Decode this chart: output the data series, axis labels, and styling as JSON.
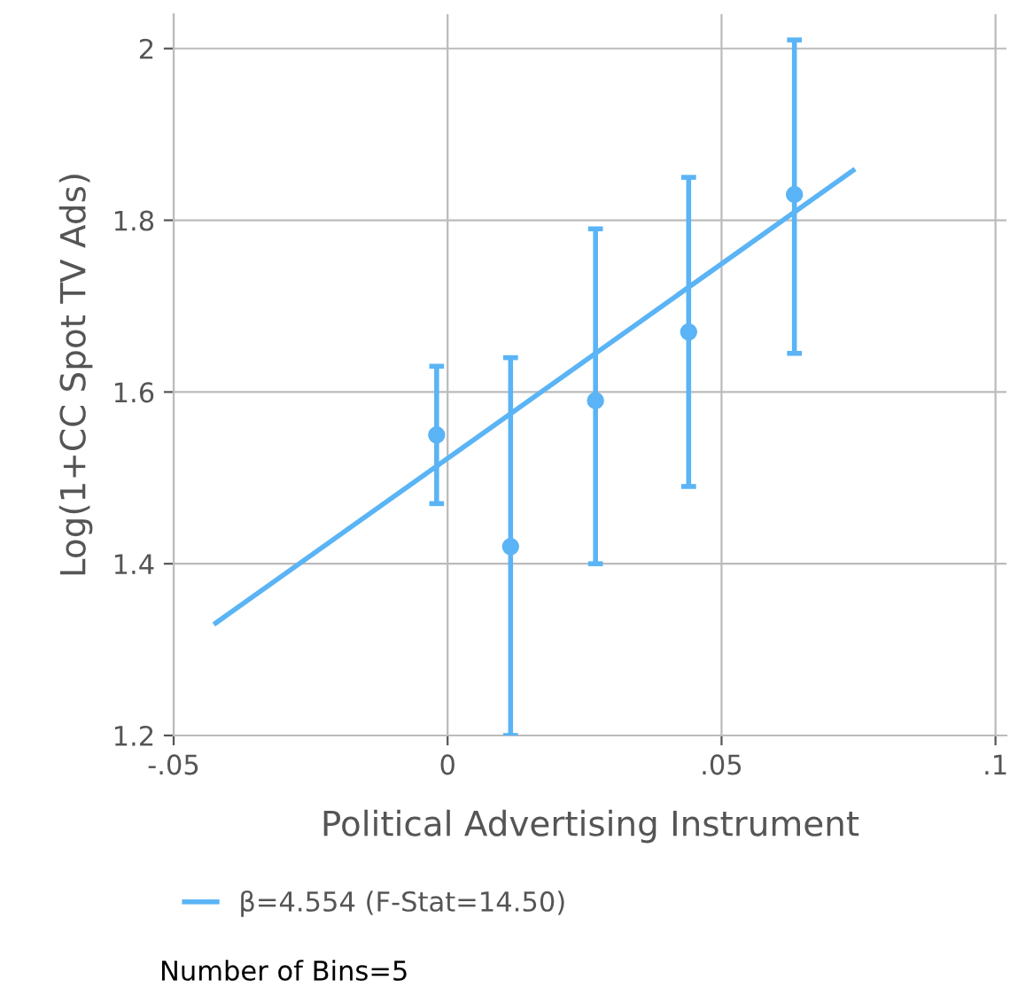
{
  "chart_data": {
    "type": "scatter",
    "xlabel": "Political Advertising Instrument",
    "ylabel": "Log(1+CC Spot TV Ads)",
    "xlim": [
      -0.05,
      0.102
    ],
    "ylim": [
      1.2,
      2.04
    ],
    "xticks": [
      {
        "value": -0.05,
        "label": "-.05"
      },
      0,
      {
        "value": 0.05,
        "label": ".05"
      },
      {
        "value": 0.1,
        "label": ".1"
      }
    ],
    "yticks": [
      {
        "value": 1.2,
        "label": "1.2"
      },
      {
        "value": 1.4,
        "label": "1.4"
      },
      {
        "value": 1.6,
        "label": "1.6"
      },
      {
        "value": 1.8,
        "label": "1.8"
      },
      2
    ],
    "grid": true,
    "legend": "bottom",
    "series": [
      {
        "marker": "circle",
        "color": "#5ab4f5",
        "x": [
          -0.002,
          0.0115,
          0.027,
          0.044,
          0.0633
        ],
        "values": [
          1.55,
          1.42,
          1.59,
          1.67,
          1.83
        ],
        "errors": [
          [
            1.47,
            1.63
          ],
          [
            1.2,
            1.64
          ],
          [
            1.4,
            1.79
          ],
          [
            1.49,
            1.85
          ],
          [
            1.645,
            2.01
          ]
        ]
      },
      {
        "type": "line",
        "name": "β=4.554 (F-Stat=14.50)",
        "color": "#5ab4f5",
        "x": [
          -0.0423,
          0.074
        ],
        "values": [
          1.331,
          1.858
        ]
      }
    ],
    "annotations": [
      "Number of Bins=5"
    ]
  }
}
